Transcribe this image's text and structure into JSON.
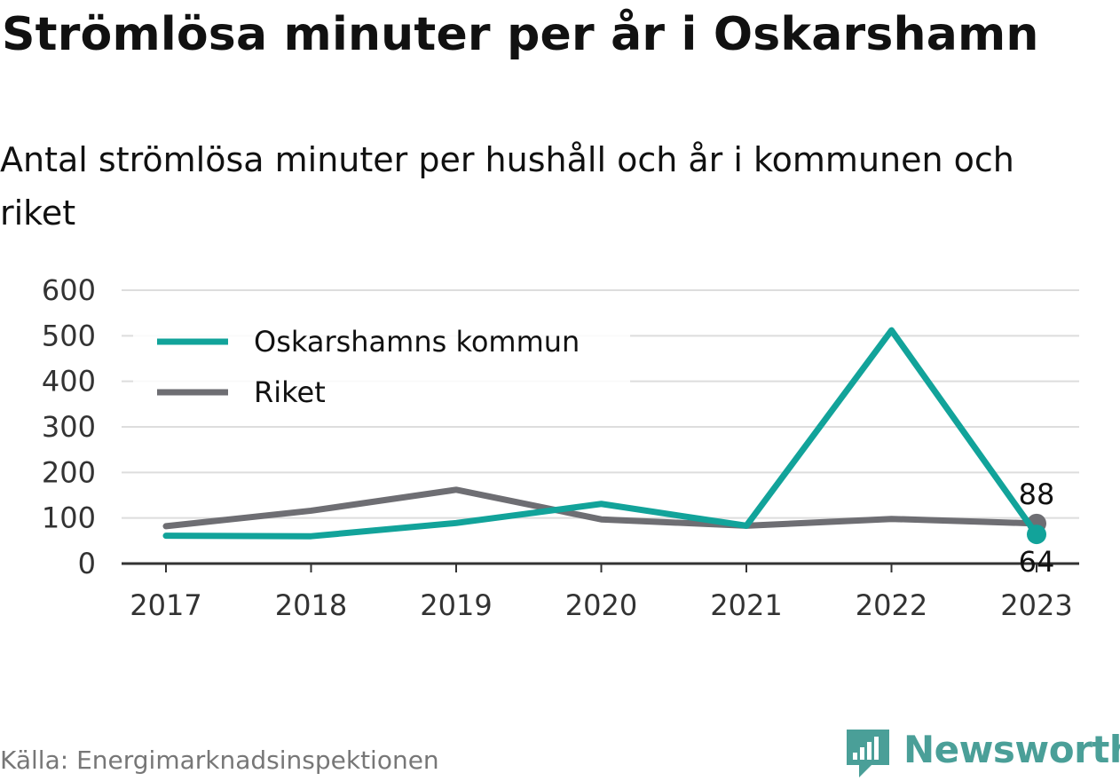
{
  "header": {
    "title": "Strömlösa minuter per år i Oskarshamn",
    "subtitle": "Antal strömlösa minuter per hushåll och år i kommunen och riket"
  },
  "footer": {
    "source": "Källa: Energimarknadsinspektionen",
    "brand": "Newsworthy",
    "brand_color": "#4a9f98"
  },
  "chart_data": {
    "type": "line",
    "categories": [
      "2017",
      "2018",
      "2019",
      "2020",
      "2021",
      "2022",
      "2023"
    ],
    "series": [
      {
        "name": "Oskarshamns kommun",
        "color": "#12a39a",
        "values": [
          61,
          60,
          89,
          131,
          83,
          512,
          64
        ]
      },
      {
        "name": "Riket",
        "color": "#6e6e73",
        "values": [
          82,
          116,
          162,
          97,
          83,
          98,
          88
        ]
      }
    ],
    "end_labels": [
      "64",
      "88"
    ],
    "ylim": [
      0,
      600
    ],
    "yticks": [
      "0",
      "100",
      "200",
      "300",
      "400",
      "500",
      "600"
    ],
    "grid": true,
    "legend_position": "top-left",
    "xlabel": "",
    "ylabel": ""
  }
}
